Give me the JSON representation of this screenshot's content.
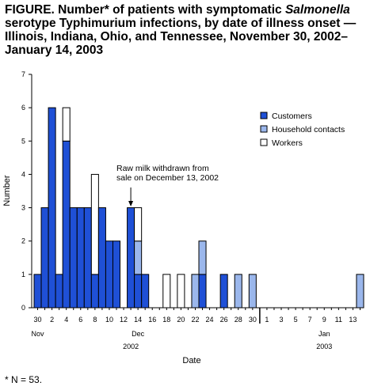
{
  "title": {
    "prefix": "FIGURE. Number* of patients with symptomatic ",
    "italic": "Salmonella",
    "suffix": " serotype Typhimurium infections, by date of illness onset — Illinois, Indiana, Ohio, and Tennessee, November 30, 2002–January 14, 2003"
  },
  "footnote": "* N = 53.",
  "chart_data": {
    "type": "bar",
    "stacked": true,
    "xlabel": "Date",
    "ylabel": "Number",
    "ylim": [
      0,
      7
    ],
    "yticks": [
      0,
      1,
      2,
      3,
      4,
      5,
      6,
      7
    ],
    "dates": [
      "2002-11-30",
      "2002-12-01",
      "2002-12-02",
      "2002-12-03",
      "2002-12-04",
      "2002-12-05",
      "2002-12-06",
      "2002-12-07",
      "2002-12-08",
      "2002-12-09",
      "2002-12-10",
      "2002-12-11",
      "2002-12-12",
      "2002-12-13",
      "2002-12-14",
      "2002-12-15",
      "2002-12-16",
      "2002-12-17",
      "2002-12-18",
      "2002-12-19",
      "2002-12-20",
      "2002-12-21",
      "2002-12-22",
      "2002-12-23",
      "2002-12-24",
      "2002-12-25",
      "2002-12-26",
      "2002-12-27",
      "2002-12-28",
      "2002-12-29",
      "2002-12-30",
      "2002-12-31",
      "2003-01-01",
      "2003-01-02",
      "2003-01-03",
      "2003-01-04",
      "2003-01-05",
      "2003-01-06",
      "2003-01-07",
      "2003-01-08",
      "2003-01-09",
      "2003-01-10",
      "2003-01-11",
      "2003-01-12",
      "2003-01-13",
      "2003-01-14"
    ],
    "x_tick_labels": [
      {
        "date": "2002-11-30",
        "label": "30"
      },
      {
        "date": "2002-12-02",
        "label": "2"
      },
      {
        "date": "2002-12-04",
        "label": "4"
      },
      {
        "date": "2002-12-06",
        "label": "6"
      },
      {
        "date": "2002-12-08",
        "label": "8"
      },
      {
        "date": "2002-12-10",
        "label": "10"
      },
      {
        "date": "2002-12-12",
        "label": "12"
      },
      {
        "date": "2002-12-14",
        "label": "14"
      },
      {
        "date": "2002-12-16",
        "label": "16"
      },
      {
        "date": "2002-12-18",
        "label": "18"
      },
      {
        "date": "2002-12-20",
        "label": "20"
      },
      {
        "date": "2002-12-22",
        "label": "22"
      },
      {
        "date": "2002-12-24",
        "label": "24"
      },
      {
        "date": "2002-12-26",
        "label": "26"
      },
      {
        "date": "2002-12-28",
        "label": "28"
      },
      {
        "date": "2002-12-30",
        "label": "30"
      },
      {
        "date": "2003-01-01",
        "label": "1"
      },
      {
        "date": "2003-01-03",
        "label": "3"
      },
      {
        "date": "2003-01-05",
        "label": "5"
      },
      {
        "date": "2003-01-07",
        "label": "7"
      },
      {
        "date": "2003-01-09",
        "label": "9"
      },
      {
        "date": "2003-01-11",
        "label": "11"
      },
      {
        "date": "2003-01-13",
        "label": "13"
      }
    ],
    "month_labels": [
      {
        "date": "2002-11-30",
        "label": "Nov"
      },
      {
        "date": "2002-12-14",
        "label": "Dec"
      },
      {
        "date": "2003-01-09",
        "label": "Jan"
      }
    ],
    "year_labels": [
      {
        "date": "2002-12-13",
        "label": "2002"
      },
      {
        "date": "2003-01-09",
        "label": "2003"
      }
    ],
    "year_divider_date": "2003-01-01",
    "series": [
      {
        "name": "Customers",
        "color": "#1f50d6",
        "values": [
          1,
          3,
          6,
          1,
          5,
          3,
          3,
          3,
          1,
          3,
          2,
          2,
          0,
          3,
          1,
          1,
          0,
          0,
          0,
          0,
          0,
          0,
          0,
          1,
          0,
          0,
          1,
          0,
          0,
          0,
          0,
          0,
          0,
          0,
          0,
          0,
          0,
          0,
          0,
          0,
          0,
          0,
          0,
          0,
          0,
          0
        ]
      },
      {
        "name": "Household contacts",
        "color": "#9bb7ec",
        "values": [
          0,
          0,
          0,
          0,
          0,
          0,
          0,
          0,
          0,
          0,
          0,
          0,
          0,
          0,
          1,
          0,
          0,
          0,
          0,
          0,
          0,
          0,
          1,
          1,
          0,
          0,
          0,
          0,
          1,
          0,
          1,
          0,
          0,
          0,
          0,
          0,
          0,
          0,
          0,
          0,
          0,
          0,
          0,
          0,
          0,
          1
        ]
      },
      {
        "name": "Workers",
        "color": "#ffffff",
        "values": [
          0,
          0,
          0,
          0,
          1,
          0,
          0,
          0,
          3,
          0,
          0,
          0,
          0,
          0,
          1,
          0,
          0,
          0,
          1,
          0,
          1,
          0,
          0,
          0,
          0,
          0,
          0,
          0,
          0,
          0,
          0,
          0,
          0,
          0,
          0,
          0,
          0,
          0,
          0,
          0,
          0,
          0,
          0,
          0,
          0,
          0
        ]
      }
    ],
    "legend_position": "right",
    "annotation": {
      "lines": [
        "Raw milk withdrawn from",
        "sale on December 13, 2002"
      ],
      "date": "2002-12-13"
    },
    "grid": false
  }
}
